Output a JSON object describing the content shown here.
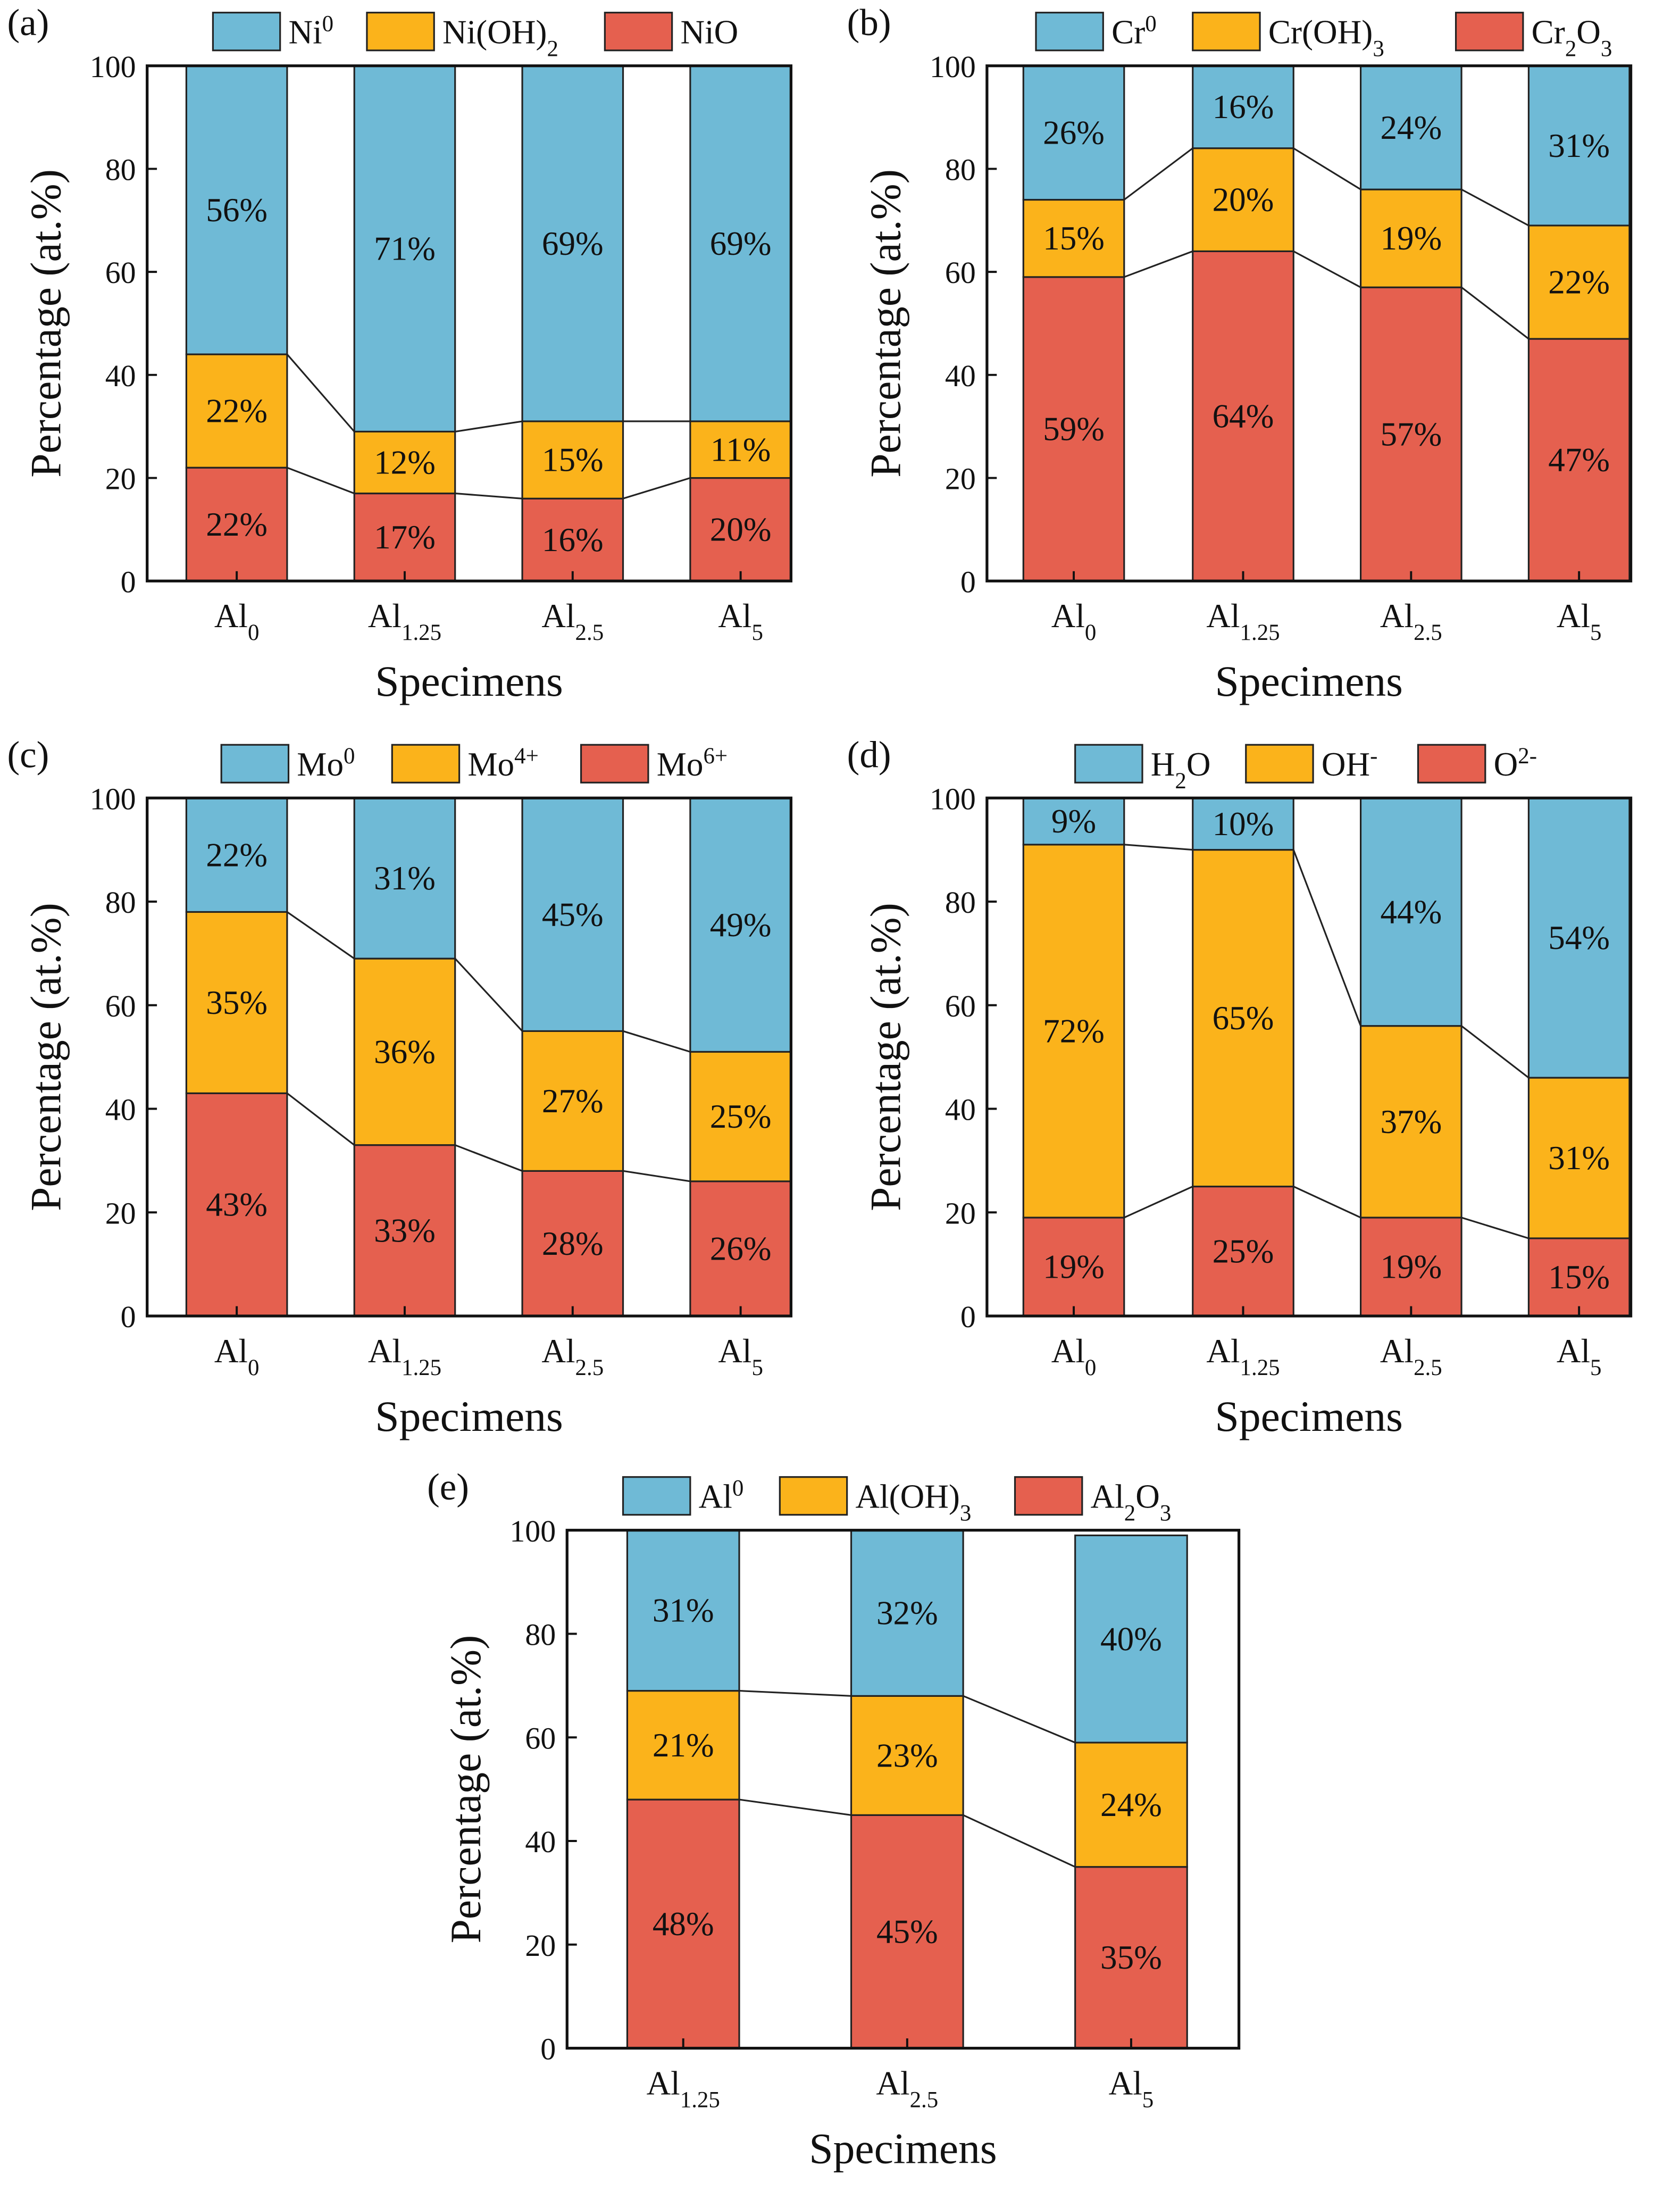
{
  "chart_data": [
    {
      "type": "bar",
      "stacked": true,
      "panel_label": "(a)",
      "xlabel": "Specimens",
      "ylabel": "Percentage (at.%)",
      "ylim": [
        0,
        100
      ],
      "yticks": [
        0,
        20,
        40,
        60,
        80,
        100
      ],
      "legend_placement": "top",
      "categories": [
        [
          {
            "t": "Al"
          },
          {
            "t": "0",
            "s": "sub"
          }
        ],
        [
          {
            "t": "Al"
          },
          {
            "t": "1.25",
            "s": "sub"
          }
        ],
        [
          {
            "t": "Al"
          },
          {
            "t": "2.5",
            "s": "sub"
          }
        ],
        [
          {
            "t": "Al"
          },
          {
            "t": "5",
            "s": "sub"
          }
        ]
      ],
      "series": [
        {
          "name": [
            {
              "t": "NiO"
            }
          ],
          "color": "#E5604F",
          "values": [
            22,
            17,
            16,
            20
          ],
          "labels": [
            "22%",
            "17%",
            "16%",
            "20%"
          ]
        },
        {
          "name": [
            {
              "t": "Ni(OH)"
            },
            {
              "t": "2",
              "s": "sub"
            }
          ],
          "color": "#FBB31B",
          "values": [
            22,
            12,
            15,
            11
          ],
          "labels": [
            "22%",
            "12%",
            "15%",
            "11%"
          ]
        },
        {
          "name": [
            {
              "t": "Ni"
            },
            {
              "t": "0",
              "s": "sup"
            }
          ],
          "color": "#6FBAD6",
          "values": [
            56,
            71,
            69,
            69
          ],
          "labels": [
            "56%",
            "71%",
            "69%",
            "69%"
          ]
        }
      ]
    },
    {
      "type": "bar",
      "stacked": true,
      "panel_label": "(b)",
      "xlabel": "Specimens",
      "ylabel": "Percentage (at.%)",
      "ylim": [
        0,
        100
      ],
      "yticks": [
        0,
        20,
        40,
        60,
        80,
        100
      ],
      "legend_placement": "top",
      "categories": [
        [
          {
            "t": "Al"
          },
          {
            "t": "0",
            "s": "sub"
          }
        ],
        [
          {
            "t": "Al"
          },
          {
            "t": "1.25",
            "s": "sub"
          }
        ],
        [
          {
            "t": "Al"
          },
          {
            "t": "2.5",
            "s": "sub"
          }
        ],
        [
          {
            "t": "Al"
          },
          {
            "t": "5",
            "s": "sub"
          }
        ]
      ],
      "series": [
        {
          "name": [
            {
              "t": "Cr"
            },
            {
              "t": "2",
              "s": "sub"
            },
            {
              "t": "O"
            },
            {
              "t": "3",
              "s": "sub"
            }
          ],
          "color": "#E5604F",
          "values": [
            59,
            64,
            57,
            47
          ],
          "labels": [
            "59%",
            "64%",
            "57%",
            "47%"
          ]
        },
        {
          "name": [
            {
              "t": "Cr(OH)"
            },
            {
              "t": "3",
              "s": "sub"
            }
          ],
          "color": "#FBB31B",
          "values": [
            15,
            20,
            19,
            22
          ],
          "labels": [
            "15%",
            "20%",
            "19%",
            "22%"
          ]
        },
        {
          "name": [
            {
              "t": "Cr"
            },
            {
              "t": "0",
              "s": "sup"
            }
          ],
          "color": "#6FBAD6",
          "values": [
            26,
            16,
            24,
            31
          ],
          "labels": [
            "26%",
            "16%",
            "24%",
            "31%"
          ]
        }
      ]
    },
    {
      "type": "bar",
      "stacked": true,
      "panel_label": "(c)",
      "xlabel": "Specimens",
      "ylabel": "Percentage (at.%)",
      "ylim": [
        0,
        100
      ],
      "yticks": [
        0,
        20,
        40,
        60,
        80,
        100
      ],
      "legend_placement": "top",
      "categories": [
        [
          {
            "t": "Al"
          },
          {
            "t": "0",
            "s": "sub"
          }
        ],
        [
          {
            "t": "Al"
          },
          {
            "t": "1.25",
            "s": "sub"
          }
        ],
        [
          {
            "t": "Al"
          },
          {
            "t": "2.5",
            "s": "sub"
          }
        ],
        [
          {
            "t": "Al"
          },
          {
            "t": "5",
            "s": "sub"
          }
        ]
      ],
      "series": [
        {
          "name": [
            {
              "t": "Mo"
            },
            {
              "t": "6+",
              "s": "sup"
            }
          ],
          "color": "#E5604F",
          "values": [
            43,
            33,
            28,
            26
          ],
          "labels": [
            "43%",
            "33%",
            "28%",
            "26%"
          ]
        },
        {
          "name": [
            {
              "t": "Mo"
            },
            {
              "t": "4+",
              "s": "sup"
            }
          ],
          "color": "#FBB31B",
          "values": [
            35,
            36,
            27,
            25
          ],
          "labels": [
            "35%",
            "36%",
            "27%",
            "25%"
          ]
        },
        {
          "name": [
            {
              "t": "Mo"
            },
            {
              "t": "0",
              "s": "sup"
            }
          ],
          "color": "#6FBAD6",
          "values": [
            22,
            31,
            45,
            49
          ],
          "labels": [
            "22%",
            "31%",
            "45%",
            "49%"
          ]
        }
      ]
    },
    {
      "type": "bar",
      "stacked": true,
      "panel_label": "(d)",
      "xlabel": "Specimens",
      "ylabel": "Percentage (at.%)",
      "ylim": [
        0,
        100
      ],
      "yticks": [
        0,
        20,
        40,
        60,
        80,
        100
      ],
      "legend_placement": "top",
      "categories": [
        [
          {
            "t": "Al"
          },
          {
            "t": "0",
            "s": "sub"
          }
        ],
        [
          {
            "t": "Al"
          },
          {
            "t": "1.25",
            "s": "sub"
          }
        ],
        [
          {
            "t": "Al"
          },
          {
            "t": "2.5",
            "s": "sub"
          }
        ],
        [
          {
            "t": "Al"
          },
          {
            "t": "5",
            "s": "sub"
          }
        ]
      ],
      "series": [
        {
          "name": [
            {
              "t": "O"
            },
            {
              "t": "2-",
              "s": "sup"
            }
          ],
          "color": "#E5604F",
          "values": [
            19,
            25,
            19,
            15
          ],
          "labels": [
            "19%",
            "25%",
            "19%",
            "15%"
          ]
        },
        {
          "name": [
            {
              "t": "OH"
            },
            {
              "t": "-",
              "s": "sup"
            }
          ],
          "color": "#FBB31B",
          "values": [
            72,
            65,
            37,
            31
          ],
          "labels": [
            "72%",
            "65%",
            "37%",
            "31%"
          ]
        },
        {
          "name": [
            {
              "t": "H"
            },
            {
              "t": "2",
              "s": "sub"
            },
            {
              "t": "O"
            }
          ],
          "color": "#6FBAD6",
          "values": [
            9,
            10,
            44,
            54
          ],
          "labels": [
            "9%",
            "10%",
            "44%",
            "54%"
          ]
        }
      ]
    },
    {
      "type": "bar",
      "stacked": true,
      "panel_label": "(e)",
      "xlabel": "Specimens",
      "ylabel": "Percentage (at.%)",
      "ylim": [
        0,
        100
      ],
      "yticks": [
        0,
        20,
        40,
        60,
        80,
        100
      ],
      "legend_placement": "top",
      "categories": [
        [
          {
            "t": "Al"
          },
          {
            "t": "1.25",
            "s": "sub"
          }
        ],
        [
          {
            "t": "Al"
          },
          {
            "t": "2.5",
            "s": "sub"
          }
        ],
        [
          {
            "t": "Al"
          },
          {
            "t": "5",
            "s": "sub"
          }
        ]
      ],
      "series": [
        {
          "name": [
            {
              "t": "Al"
            },
            {
              "t": "2",
              "s": "sub"
            },
            {
              "t": "O"
            },
            {
              "t": "3",
              "s": "sub"
            }
          ],
          "color": "#E5604F",
          "values": [
            48,
            45,
            35
          ],
          "labels": [
            "48%",
            "45%",
            "35%"
          ]
        },
        {
          "name": [
            {
              "t": "Al(OH)"
            },
            {
              "t": "3",
              "s": "sub"
            }
          ],
          "color": "#FBB31B",
          "values": [
            21,
            23,
            24
          ],
          "labels": [
            "21%",
            "23%",
            "24%"
          ]
        },
        {
          "name": [
            {
              "t": "Al"
            },
            {
              "t": "0",
              "s": "sup"
            }
          ],
          "color": "#6FBAD6",
          "values": [
            31,
            32,
            40
          ],
          "labels": [
            "31%",
            "32%",
            "40%"
          ]
        }
      ]
    }
  ]
}
